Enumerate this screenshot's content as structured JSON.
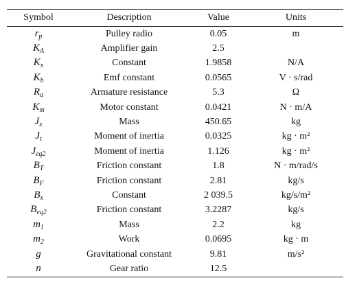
{
  "table": {
    "header": [
      "Symbol",
      "Description",
      "Value",
      "Units"
    ],
    "rows": [
      {
        "symbol": {
          "base": "r",
          "sub": "p"
        },
        "description": "Pulley radio",
        "value": "0.05",
        "units": "m"
      },
      {
        "symbol": {
          "base": "K",
          "sub": "A"
        },
        "description": "Amplifier gain",
        "value": "2.5"
      },
      {
        "symbol": {
          "base": "K",
          "sub": "x"
        },
        "description": "Constant",
        "value": "1.9858",
        "units": "N/A"
      },
      {
        "symbol": {
          "base": "K",
          "sub": "b"
        },
        "description": "Emf constant",
        "value": "0.0565",
        "units": "V · s/rad"
      },
      {
        "symbol": {
          "base": "R",
          "sub": "a"
        },
        "description": "Armature resistance",
        "value": "5.3",
        "units": "Ω"
      },
      {
        "symbol": {
          "base": "K",
          "sub": "m"
        },
        "description": "Motor constant",
        "value": "0.0421",
        "units": "N · m/A"
      },
      {
        "symbol": {
          "base": "J",
          "sub": "x"
        },
        "description": "Mass",
        "value": "450.65",
        "units": "kg"
      },
      {
        "symbol": {
          "base": "J",
          "sub": "t"
        },
        "description": "Moment of inertia",
        "value": "0.0325",
        "units": "kg · m²"
      },
      {
        "symbol": {
          "base": "J",
          "sub": "eq2"
        },
        "description": "Moment of inertia",
        "value": "1.126",
        "units": "kg · m²"
      },
      {
        "symbol": {
          "base": "B",
          "sub": "T"
        },
        "description": "Friction constant",
        "value": "1.8",
        "units": "N · m/rad/s"
      },
      {
        "symbol": {
          "base": "B",
          "sub": "F"
        },
        "description": "Friction constant",
        "value": "2.81",
        "units": "kg/s"
      },
      {
        "symbol": {
          "base": "B",
          "sub": "x"
        },
        "description": "Constant",
        "value": "2 039.5",
        "units": "kg/s/m²"
      },
      {
        "symbol": {
          "base": "B",
          "sub": "eq2"
        },
        "description": "Friction constant",
        "value": "3.2287",
        "units": "kg/s"
      },
      {
        "symbol": {
          "base": "m",
          "sub": "1"
        },
        "description": "Mass",
        "value": "2.2",
        "units": "kg"
      },
      {
        "symbol": {
          "base": "m",
          "sub": "2"
        },
        "description": "Work",
        "value": "0.0695",
        "units": "kg · m"
      },
      {
        "symbol": {
          "base": "g"
        },
        "description": "Gravitational constant",
        "value": "9.81",
        "units": "m/s²"
      },
      {
        "symbol": {
          "base": "n"
        },
        "description": "Gear ratio",
        "value": "12.5"
      }
    ]
  }
}
